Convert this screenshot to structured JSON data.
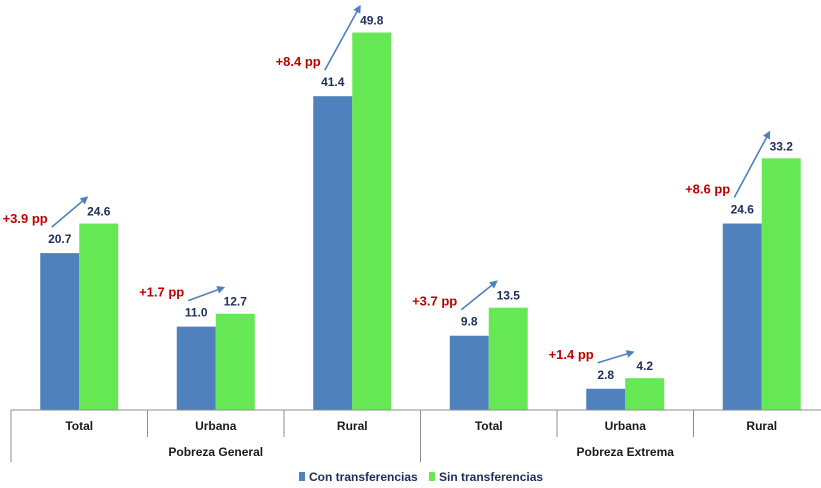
{
  "chart_data": {
    "type": "bar",
    "groups": [
      {
        "label": "Pobreza General",
        "categories": [
          "Total",
          "Urbana",
          "Rural"
        ]
      },
      {
        "label": "Pobreza Extrema",
        "categories": [
          "Total",
          "Urbana",
          "Rural"
        ]
      }
    ],
    "categories": [
      "Total",
      "Urbana",
      "Rural",
      "Total",
      "Urbana",
      "Rural"
    ],
    "series": [
      {
        "name": "Con transferencias",
        "color": "#4f81bd",
        "values": [
          20.7,
          11.0,
          41.4,
          9.8,
          2.8,
          24.6
        ],
        "labels": [
          "20.7",
          "11.0",
          "41.4",
          "9.8",
          "2.8",
          "24.6"
        ]
      },
      {
        "name": "Sin transferencias",
        "color": "#66e855",
        "values": [
          24.6,
          12.7,
          49.8,
          13.5,
          4.2,
          33.2
        ],
        "labels": [
          "24.6",
          "12.7",
          "49.8",
          "13.5",
          "4.2",
          "33.2"
        ]
      }
    ],
    "annotations": [
      "+3.9 pp",
      "+1.7 pp",
      "+8.4 pp",
      "+3.7 pp",
      "+1.4 pp",
      "+8.6 pp"
    ],
    "annotation_color": "#c00000",
    "arrow_color": "#4f81bd",
    "ylim": [
      0,
      50
    ],
    "grid": false,
    "legend_position": "bottom"
  }
}
